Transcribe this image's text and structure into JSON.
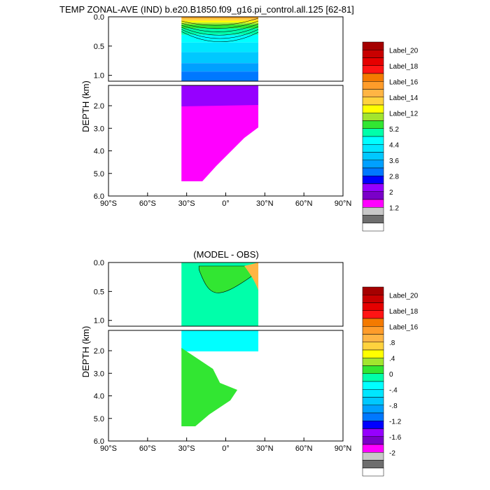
{
  "chart_data": [
    {
      "type": "heatmap",
      "title": "TEMP ZONAL-AVE (IND) b.e20.B1850.f09_g16.pi_control.all.125 [62-81]",
      "ylabel": "DEPTH (km)",
      "x_ticks": [
        "90°S",
        "60°S",
        "30°S",
        "0°",
        "30°N",
        "60°N",
        "90°N"
      ],
      "x_range": [
        -90,
        90
      ],
      "upper_y_ticks": [
        "0.0",
        "0.5",
        "1.0"
      ],
      "lower_y_ticks": [
        "2.0",
        "3.0",
        "4.0",
        "5.0",
        "6.0"
      ],
      "upper_y_range": [
        0,
        1.1
      ],
      "lower_y_range": [
        1.1,
        6.0
      ],
      "data_extent": {
        "lat": [
          -34,
          25
        ],
        "max_depth_km": 5.35
      },
      "legend_entries": [
        "Label_20",
        "Label_18",
        "Label_16",
        "Label_14",
        "Label_12",
        "5.2",
        "4.4",
        "3.6",
        "2.8",
        "2",
        "1.2"
      ],
      "legend_colors": [
        "#a50000",
        "#c80000",
        "#e60000",
        "#ff1414",
        "#f47a00",
        "#ff9c2a",
        "#ffb544",
        "#ffd23e",
        "#ffff00",
        "#a2e52e",
        "#32e632",
        "#00ffaa",
        "#00ffff",
        "#00e6ff",
        "#00c8ff",
        "#00a0ff",
        "#0078ff",
        "#0000ff",
        "#9600ff",
        "#7a00c8",
        "#ff00ff",
        "#c8c8c8",
        "#6e6e6e",
        "#ffffff"
      ],
      "description_fields": [
        "field values fill the ocean domain between 34°S and 25°N"
      ]
    },
    {
      "type": "heatmap",
      "title": "(MODEL - OBS)",
      "ylabel": "DEPTH (km)",
      "x_ticks": [
        "90°S",
        "60°S",
        "30°S",
        "0°",
        "30°N",
        "60°N",
        "90°N"
      ],
      "x_range": [
        -90,
        90
      ],
      "upper_y_ticks": [
        "0.0",
        "0.5",
        "1.0"
      ],
      "lower_y_ticks": [
        "2.0",
        "3.0",
        "4.0",
        "5.0",
        "6.0"
      ],
      "upper_y_range": [
        0,
        1.1
      ],
      "lower_y_range": [
        1.1,
        6.0
      ],
      "data_extent": {
        "lat": [
          -34,
          25
        ],
        "max_depth_km": 5.35
      },
      "legend_entries": [
        "Label_20",
        "Label_18",
        "Label_16",
        ".8",
        ".4",
        "0",
        "-.4",
        "-.8",
        "-1.2",
        "-1.6",
        "-2"
      ],
      "legend_colors": [
        "#a50000",
        "#c80000",
        "#e60000",
        "#ff1414",
        "#f47a00",
        "#ff9c2a",
        "#ffb544",
        "#ffd23e",
        "#ffff00",
        "#a2e52e",
        "#32e632",
        "#00ffaa",
        "#00ffff",
        "#00e6ff",
        "#00c8ff",
        "#00a0ff",
        "#0078ff",
        "#0000ff",
        "#9600ff",
        "#7a00c8",
        "#ff00ff",
        "#c8c8c8",
        "#6e6e6e",
        "#ffffff"
      ]
    }
  ]
}
